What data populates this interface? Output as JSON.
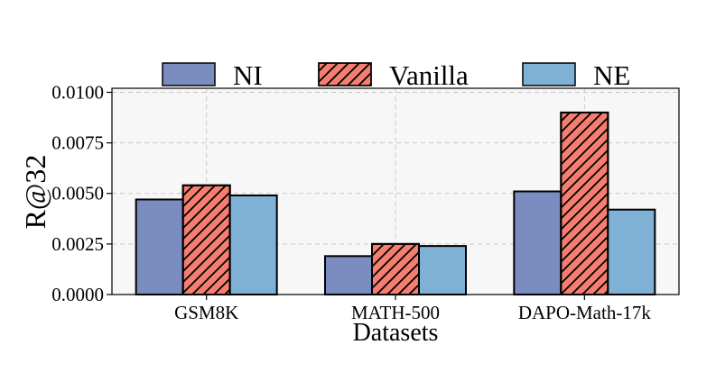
{
  "chart_data": {
    "type": "bar",
    "title": "",
    "xlabel": "Datasets",
    "ylabel": "R@32",
    "categories": [
      "GSM8K",
      "MATH-500",
      "DAPO-Math-17k"
    ],
    "series": [
      {
        "name": "NI",
        "values": [
          0.0047,
          0.0019,
          0.0051
        ],
        "color": "#7b8cc0",
        "hatch": false
      },
      {
        "name": "Vanilla",
        "values": [
          0.0054,
          0.0025,
          0.009
        ],
        "color": "#f47e6f",
        "hatch": true
      },
      {
        "name": "NE",
        "values": [
          0.0049,
          0.0024,
          0.0042
        ],
        "color": "#7fb0d5",
        "hatch": false
      }
    ],
    "ylim": [
      0,
      0.0102
    ],
    "yticks": [
      0,
      0.0025,
      0.005,
      0.0075,
      0.01
    ],
    "ytick_labels": [
      "0.0000",
      "0.0025",
      "0.0050",
      "0.0075",
      "0.0100"
    ],
    "grid": true,
    "legend_position": "top-center",
    "plot_background": "#f7f7f7",
    "grid_color": "#c8c8c8"
  }
}
